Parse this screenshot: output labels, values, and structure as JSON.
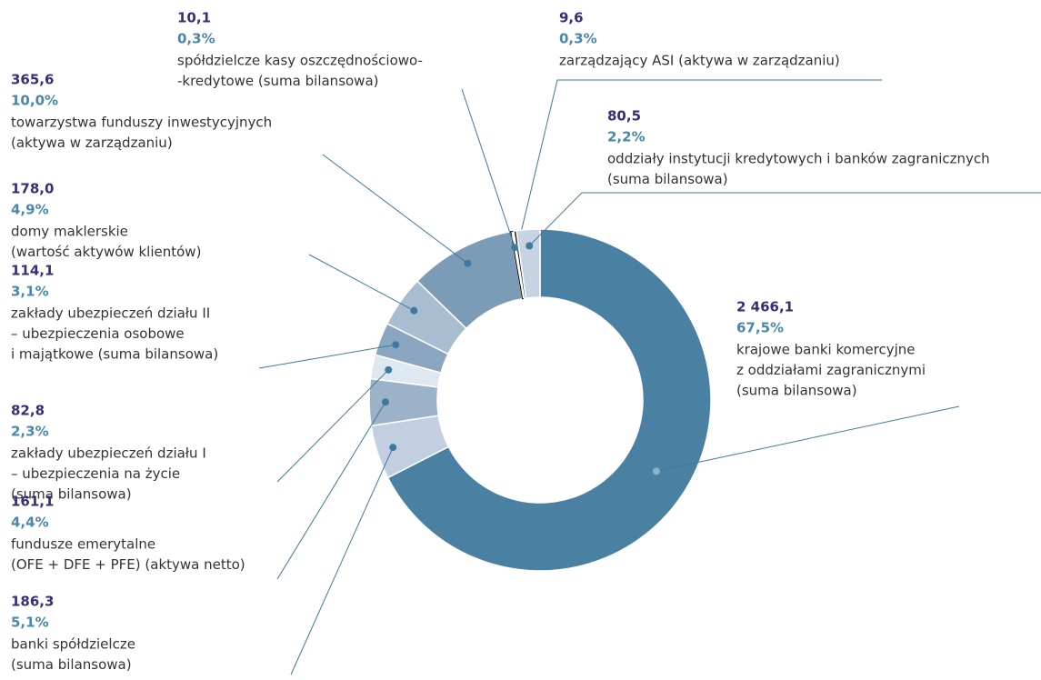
{
  "chart_data": {
    "type": "donut",
    "categories": [
      [
        "krajowe banki komercyjne",
        "z oddziałami zagranicznymi",
        "(suma bilansowa)"
      ],
      [
        "banki spółdzielcze",
        "(suma bilansowa)"
      ],
      [
        "fundusze emerytalne",
        "(OFE + DFE + PFE) (aktywa netto)"
      ],
      [
        "zakłady ubezpieczeń działu I",
        "– ubezpieczenia na życie",
        "(suma bilansowa)"
      ],
      [
        "zakłady ubezpieczeń działu II",
        "– ubezpieczenia osobowe",
        "i majątkowe (suma bilansowa)"
      ],
      [
        "domy maklerskie",
        "(wartość aktywów klientów)"
      ],
      [
        "towarzystwa funduszy inwestycyjnych",
        "(aktywa w zarządzaniu)"
      ],
      [
        "spółdzielcze kasy oszczędnościowo-",
        "-kredytowe (suma bilansowa)"
      ],
      [
        "zarządzający ASI (aktywa w zarządzaniu)"
      ],
      [
        "oddziały instytucji kredytowych i banków zagranicznych",
        "(suma bilansowa)"
      ]
    ],
    "values": [
      2466.1,
      186.3,
      161.1,
      82.8,
      114.1,
      178.0,
      365.6,
      10.1,
      9.6,
      80.5
    ],
    "value_labels": [
      "2 466,1",
      "186,3",
      "161,1",
      "82,8",
      "114,1",
      "178,0",
      "365,6",
      "10,1",
      "9,6",
      "80,5"
    ],
    "shares": [
      67.5,
      5.1,
      4.4,
      2.3,
      3.1,
      4.9,
      10.0,
      0.3,
      0.3,
      2.2
    ],
    "share_labels": [
      "67,5%",
      "5,1%",
      "4,4%",
      "2,3%",
      "3,1%",
      "4,9%",
      "10,0%",
      "0,3%",
      "0,3%",
      "2,2%"
    ],
    "colors": [
      "#4a80a2",
      "#c2cfe0",
      "#9cb2c8",
      "#dfe7f0",
      "#89a5bf",
      "#a9bdd1",
      "#7b9bb7",
      "#ffffff",
      "#1a1a1a",
      "#c6d3e3"
    ]
  }
}
